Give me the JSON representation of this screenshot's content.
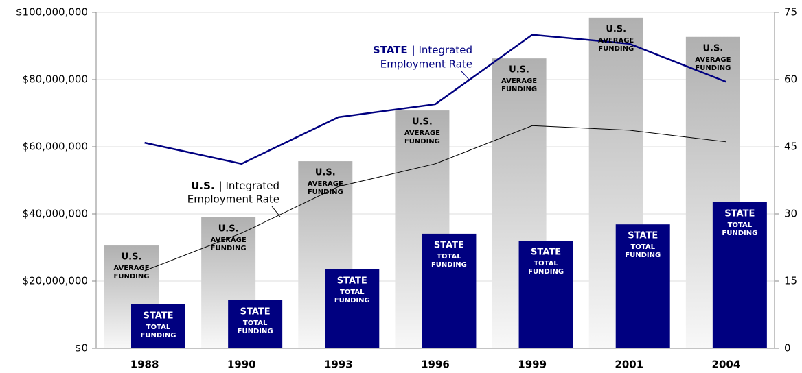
{
  "chart_data": {
    "type": "bar",
    "categories": [
      "1988",
      "1990",
      "1993",
      "1996",
      "1999",
      "2001",
      "2004"
    ],
    "ylim": [
      0,
      100000000
    ],
    "yticks": [
      {
        "value": 0,
        "label": "$0"
      },
      {
        "value": 20000000,
        "label": "$20,000,000"
      },
      {
        "value": 40000000,
        "label": "$40,000,000"
      },
      {
        "value": 60000000,
        "label": "$60,000,000"
      },
      {
        "value": 80000000,
        "label": "$80,000,000"
      },
      {
        "value": 100000000,
        "label": "$100,000,000"
      }
    ],
    "y2lim": [
      0,
      75
    ],
    "y2ticks": [
      0,
      15,
      30,
      45,
      60,
      75
    ],
    "grid": true,
    "series": [
      {
        "type": "bar",
        "label": [
          "U.S.",
          "AVERAGE",
          "FUNDING"
        ],
        "color": "#b0b0b0",
        "values": [
          30600000,
          39000000,
          55700000,
          70800000,
          86300000,
          98400000,
          92700000
        ]
      },
      {
        "type": "bar",
        "label": [
          "STATE",
          "TOTAL",
          "FUNDING"
        ],
        "color": "#000080",
        "values": [
          13100000,
          14300000,
          23500000,
          34100000,
          32000000,
          36900000,
          43500000
        ]
      },
      {
        "type": "line",
        "axis": "y2",
        "color": "#000080",
        "width": 2.5,
        "values": [
          45.9,
          41.2,
          51.6,
          54.5,
          70.0,
          68.0,
          59.5
        ]
      },
      {
        "type": "line",
        "axis": "y2",
        "color": "#000000",
        "width": 1,
        "values": [
          17.3,
          25.7,
          36.1,
          41.2,
          49.7,
          48.7,
          46.1
        ]
      }
    ],
    "annotations": [
      {
        "bold": "STATE",
        "text": "| Integrated",
        "line2": "Employment Rate",
        "color": "#000080"
      },
      {
        "bold": "U.S.",
        "text": "| Integrated",
        "line2": "Employment Rate",
        "color": "#000000"
      }
    ]
  }
}
